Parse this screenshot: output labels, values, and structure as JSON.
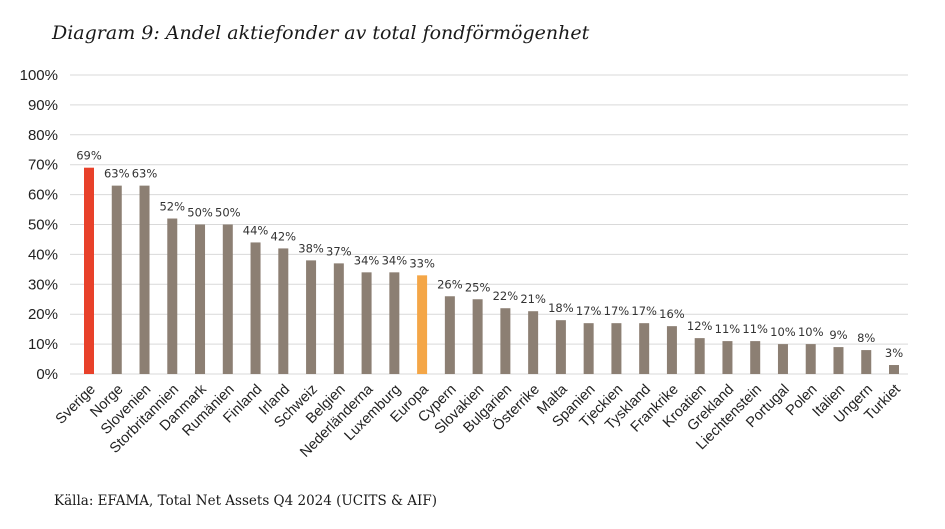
{
  "title": "Diagram 9: Andel aktiefonder av total fondförmögenhet",
  "source": "Källa: EFAMA, Total Net Assets Q4 2024 (UCITS & AIF)",
  "chart_data": {
    "type": "bar",
    "title": "Diagram 9: Andel aktiefonder av total fondförmögenhet",
    "xlabel": "",
    "ylabel": "",
    "ylim": [
      0,
      100
    ],
    "yticks": [
      "0%",
      "10%",
      "20%",
      "30%",
      "40%",
      "50%",
      "60%",
      "70%",
      "80%",
      "90%",
      "100%"
    ],
    "grid": true,
    "legend": "none",
    "categories": [
      "Sverige",
      "Norge",
      "Slovenien",
      "Storbritannien",
      "Danmark",
      "Rumänien",
      "Finland",
      "Irland",
      "Schweiz",
      "Belgien",
      "Nederländerna",
      "Luxemburg",
      "Europa",
      "Cypern",
      "Slovakien",
      "Bulgarien",
      "Österrike",
      "Malta",
      "Spanien",
      "Tjeckien",
      "Tyskland",
      "Frankrike",
      "Kroatien",
      "Grekland",
      "Liechtenstein",
      "Portugal",
      "Polen",
      "Italien",
      "Ungern",
      "Turkiet"
    ],
    "values": [
      69,
      63,
      63,
      52,
      50,
      50,
      44,
      42,
      38,
      37,
      34,
      34,
      33,
      26,
      25,
      22,
      21,
      18,
      17,
      17,
      17,
      16,
      12,
      11,
      11,
      10,
      10,
      9,
      8,
      3
    ],
    "labels": [
      "69%",
      "63%",
      "63%",
      "52%",
      "50%",
      "50%",
      "44%",
      "42%",
      "38%",
      "37%",
      "34%",
      "34%",
      "33%",
      "26%",
      "25%",
      "22%",
      "21%",
      "18%",
      "17%",
      "17%",
      "17%",
      "16%",
      "12%",
      "11%",
      "11%",
      "10%",
      "10%",
      "9%",
      "8%",
      "3%"
    ],
    "colors": {
      "default": "#8c7f73",
      "Sverige": "#e8412a",
      "Europa": "#f4a647"
    }
  }
}
